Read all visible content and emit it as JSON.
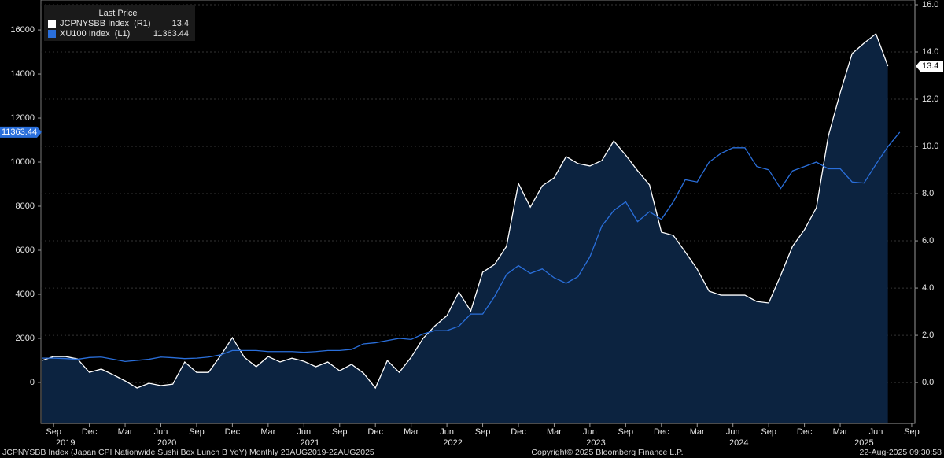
{
  "chart_data": {
    "type": "line",
    "legend_title": "Last Price",
    "categories": [
      null,
      "Sep",
      null,
      null,
      "Dec",
      null,
      null,
      "Mar",
      null,
      null,
      "Jun",
      null,
      null,
      "Sep",
      null,
      null,
      "Dec",
      null,
      null,
      "Mar",
      null,
      null,
      "Jun",
      null,
      null,
      "Sep",
      null,
      null,
      "Dec",
      null,
      null,
      "Mar",
      null,
      null,
      "Jun",
      null,
      null,
      "Sep",
      null,
      null,
      "Dec",
      null,
      null,
      "Mar",
      null,
      null,
      "Jun",
      null,
      null,
      "Sep",
      null,
      null,
      "Dec",
      null,
      null,
      "Mar",
      null,
      null,
      "Jun",
      null,
      null,
      "Sep",
      null,
      null,
      "Dec",
      null,
      null,
      "Mar",
      null,
      null,
      "Jun",
      null,
      null,
      "Sep"
    ],
    "years": [
      "2019",
      "2020",
      "2021",
      "2022",
      "2023",
      "2024",
      "2025"
    ],
    "series": [
      {
        "name": "JCPNYSBB Index  (R1)",
        "color": "#ffffff",
        "area_color": "#0c2340",
        "axis": "y2",
        "values": [
          0.93,
          1.1,
          1.1,
          1.0,
          0.43,
          0.57,
          0.33,
          0.07,
          -0.23,
          -0.03,
          -0.13,
          -0.07,
          0.87,
          0.43,
          0.43,
          1.13,
          1.9,
          1.07,
          0.67,
          1.1,
          0.87,
          1.03,
          0.9,
          0.67,
          0.87,
          0.5,
          0.77,
          0.4,
          -0.23,
          0.93,
          0.43,
          1.07,
          1.87,
          2.4,
          2.83,
          3.83,
          3.03,
          4.67,
          5.0,
          5.77,
          8.43,
          7.43,
          8.33,
          8.67,
          9.57,
          9.27,
          9.17,
          9.4,
          10.23,
          9.63,
          8.97,
          8.37,
          6.37,
          6.23,
          5.53,
          4.8,
          3.87,
          3.7,
          3.7,
          3.7,
          3.43,
          3.37,
          4.53,
          5.77,
          6.47,
          7.4,
          10.43,
          12.27,
          13.93,
          14.37,
          14.77,
          13.4,
          null,
          null
        ]
      },
      {
        "name": "XU100 Index  (L1)",
        "color": "#2a6fdb",
        "axis": "y",
        "values": [
          1100,
          1100,
          1080,
          1050,
          1130,
          1150,
          1050,
          950,
          1000,
          1050,
          1150,
          1120,
          1080,
          1100,
          1150,
          1250,
          1450,
          1450,
          1450,
          1400,
          1400,
          1400,
          1370,
          1400,
          1450,
          1450,
          1500,
          1750,
          1800,
          1900,
          2000,
          1950,
          2200,
          2350,
          2350,
          2550,
          3100,
          3100,
          3900,
          4900,
          5300,
          4950,
          5150,
          4750,
          4500,
          4800,
          5700,
          7100,
          7800,
          8200,
          7300,
          7750,
          7400,
          8200,
          9200,
          9100,
          10000,
          10400,
          10650,
          10650,
          9800,
          9650,
          8800,
          9600,
          9800,
          10000,
          9700,
          9700,
          9100,
          9050,
          9900,
          10700,
          11363.44,
          null
        ]
      }
    ],
    "ylim": [
      -1860,
      17360
    ],
    "yticks": [
      0,
      2000,
      4000,
      6000,
      8000,
      10000,
      12000,
      14000,
      16000
    ],
    "y2lim": [
      -1.73,
      16.2
    ],
    "y2ticks": [
      {
        "value": 0,
        "label": "0.0"
      },
      {
        "value": 2,
        "label": "2.0"
      },
      {
        "value": 4,
        "label": "4.0"
      },
      {
        "value": 6,
        "label": "6.0"
      },
      {
        "value": 8,
        "label": "8.0"
      },
      {
        "value": 10,
        "label": "10.0"
      },
      {
        "value": 12,
        "label": "12.0"
      },
      {
        "value": 14,
        "label": "14.0"
      },
      {
        "value": 16,
        "label": "16.0"
      }
    ],
    "grid": true,
    "footer": {
      "left": "JCPNYSBB Index (Japan CPI Nationwide Sushi Box Lunch B YoY)  Monthly 23AUG2019-22AUG2025",
      "center": "Copyright© 2025 Bloomberg Finance L.P.",
      "right": "22-Aug-2025 09:30:58"
    }
  }
}
